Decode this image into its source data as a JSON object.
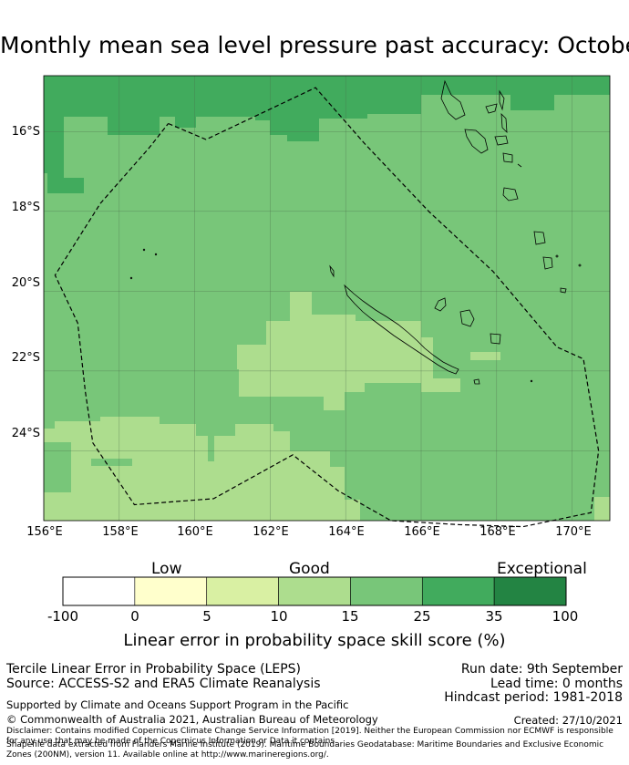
{
  "title": "Monthly mean sea level pressure past accuracy: October",
  "map": {
    "lat_labels": [
      "16°S",
      "18°S",
      "20°S",
      "22°S",
      "24°S"
    ],
    "lon_labels": [
      "156°E",
      "158°E",
      "160°E",
      "162°E",
      "164°E",
      "166°E",
      "168°E",
      "170°E"
    ],
    "lat_values": [
      -16,
      -18,
      -20,
      -22,
      -24
    ],
    "lon_values": [
      156,
      158,
      160,
      162,
      164,
      166,
      168,
      170
    ],
    "extent": {
      "lon_min": 156,
      "lon_max": 171,
      "lat_min": -25.75,
      "lat_max": -14.6
    },
    "eez_boundary": [
      [
        159.3,
        -15.8
      ],
      [
        160.3,
        -16.2
      ],
      [
        163.2,
        -14.9
      ],
      [
        164.5,
        -16.3
      ],
      [
        166.2,
        -18.0
      ],
      [
        167.9,
        -19.5
      ],
      [
        169.6,
        -21.4
      ],
      [
        170.3,
        -21.7
      ],
      [
        170.7,
        -24.0
      ],
      [
        170.5,
        -25.55
      ],
      [
        168.7,
        -25.9
      ],
      [
        167.0,
        -25.85
      ],
      [
        165.2,
        -25.75
      ],
      [
        163.8,
        -25.0
      ],
      [
        162.6,
        -24.1
      ],
      [
        160.5,
        -25.2
      ],
      [
        158.4,
        -25.35
      ],
      [
        157.3,
        -23.8
      ],
      [
        157.1,
        -22.5
      ],
      [
        156.9,
        -20.8
      ],
      [
        156.3,
        -19.6
      ],
      [
        157.5,
        -17.8
      ],
      [
        158.8,
        -16.4
      ],
      [
        159.3,
        -15.8
      ]
    ]
  },
  "colorbar": {
    "categories": [
      "Low",
      "Good",
      "Exceptional"
    ],
    "ticks": [
      "-100",
      "0",
      "5",
      "10",
      "15",
      "25",
      "35",
      "100"
    ],
    "colors": [
      "#ffffff",
      "#ffffcc",
      "#d9f0a3",
      "#addd8e",
      "#78c679",
      "#41ab5d",
      "#238443"
    ],
    "label": "Linear error in probability space skill score (%)"
  },
  "info": {
    "method": "Tercile Linear Error in Probability Space (LEPS)",
    "source": "Source: ACCESS-S2 and ERA5 Climate Reanalysis",
    "run_date": "Run date: 9th September",
    "lead_time": "Lead time: 0 months",
    "hindcast": "Hindcast period: 1981-2018",
    "support": "Supported by Climate and Oceans Support Program in the Pacific",
    "copyright": "© Commonwealth of Australia 2021, Australian Bureau of Meteorology",
    "created": "Created: 27/10/2021",
    "disclaimer": "Disclaimer: Contains modified Copernicus Climate Change Service Information [2019]. Neither the European Commission nor ECMWF is responsible for any use that may be made of the Copernicus Information or Data it contains.",
    "shapefile": "Shapefile data extracted from Flanders Marine Institute (2019). Maritime Boundaries Geodatabase: Maritime Boundaries and Exclusive Economic Zones (200NM), version 11. Available online at http://www.marineregions.org/."
  }
}
